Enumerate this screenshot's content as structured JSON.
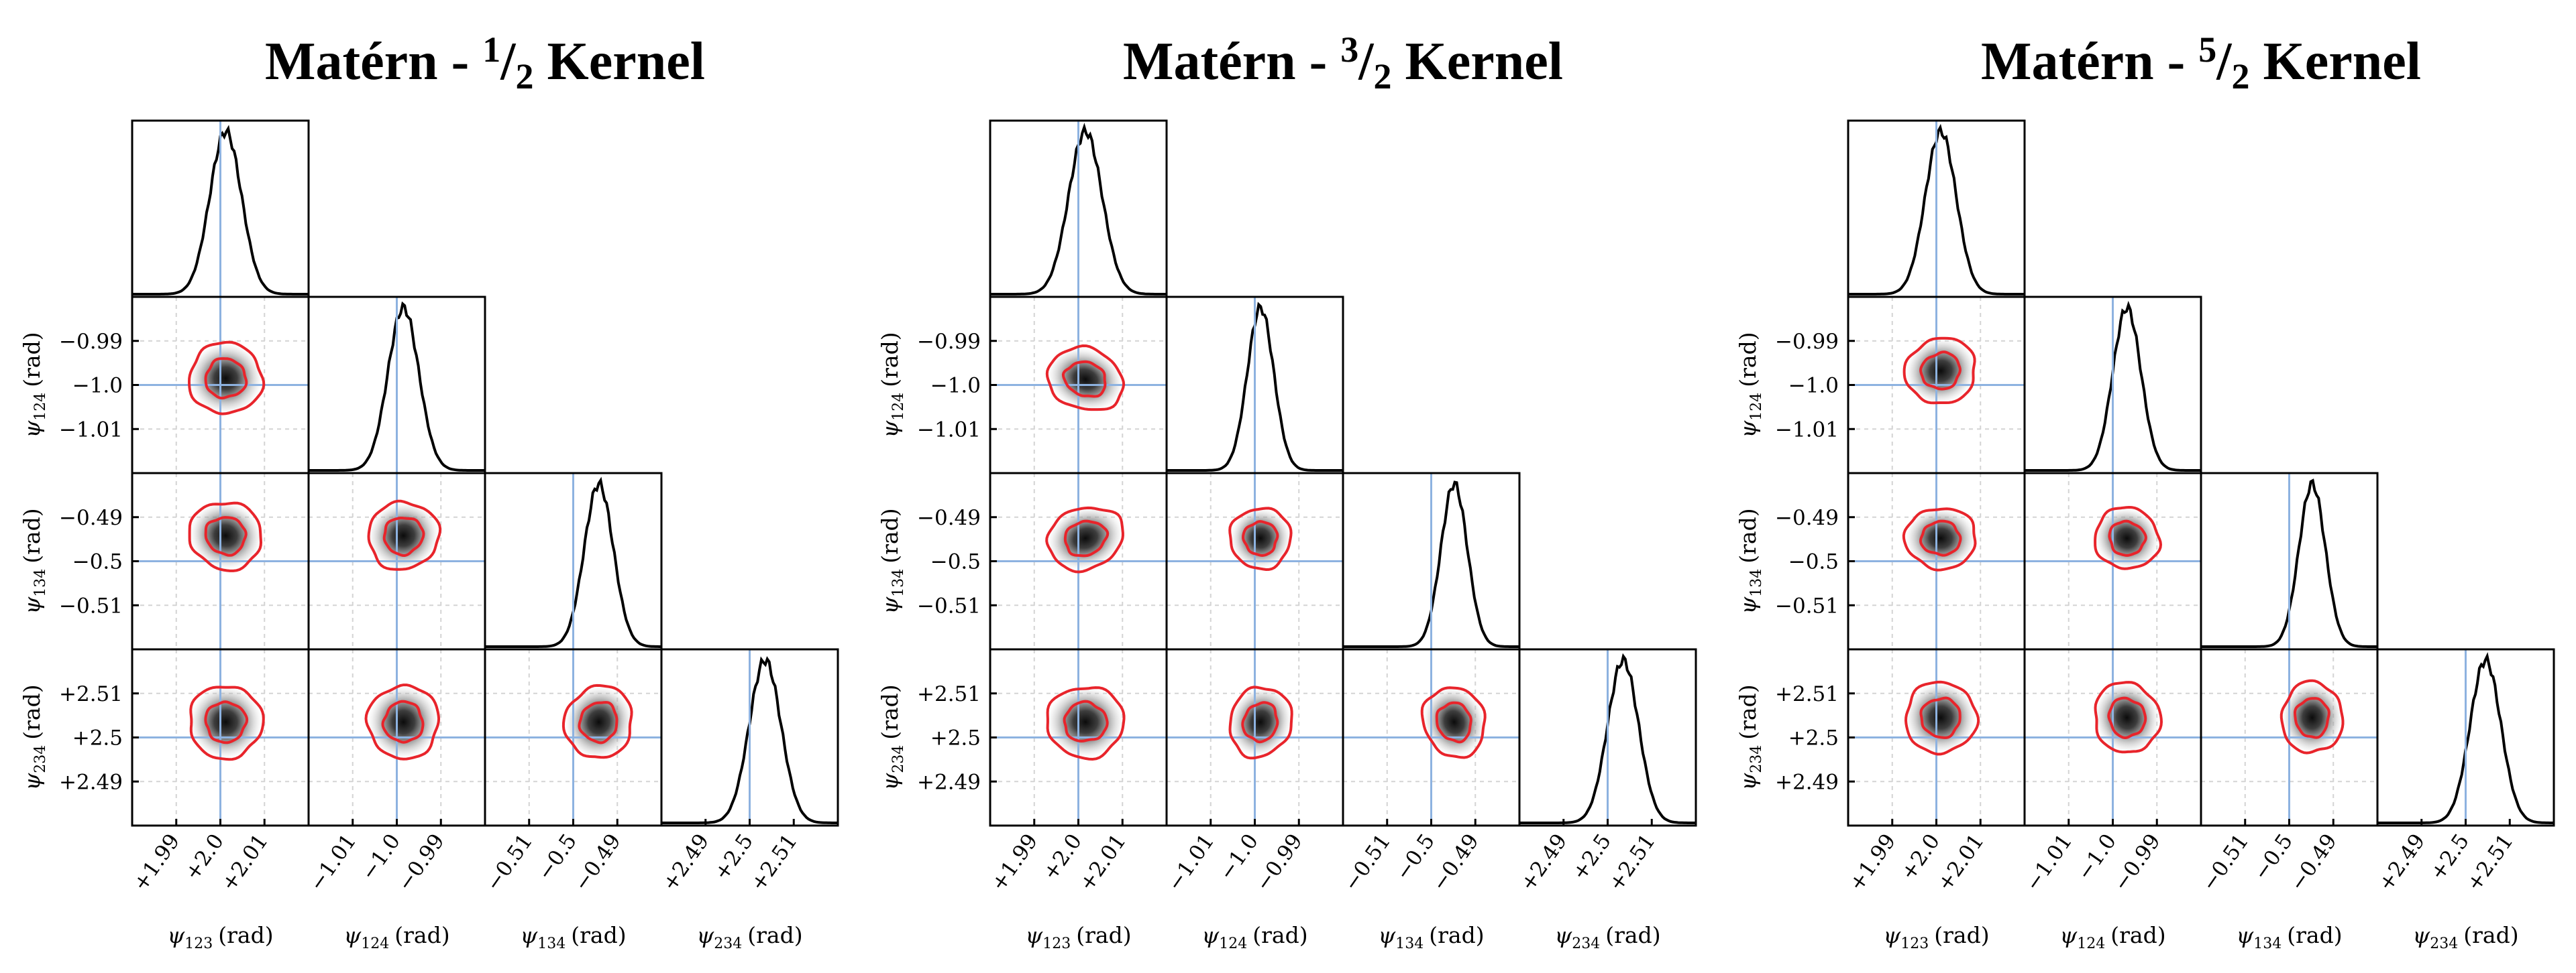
{
  "figure": {
    "titles": [
      {
        "prefix": "Matérn - ",
        "numerator": "1",
        "slash": "/",
        "denominator": "2",
        "suffix": " Kernel"
      },
      {
        "prefix": "Matérn - ",
        "numerator": "3",
        "slash": "/",
        "denominator": "2",
        "suffix": " Kernel"
      },
      {
        "prefix": "Matérn - ",
        "numerator": "5",
        "slash": "/",
        "denominator": "2",
        "suffix": " Kernel"
      }
    ],
    "unit": "(rad)",
    "params": [
      {
        "symbol": "ψ",
        "sub": "123",
        "ticks": [
          "+1.99",
          "+2.0",
          "+2.01"
        ]
      },
      {
        "symbol": "ψ",
        "sub": "124",
        "ticks": [
          "−1.01",
          "−1.0",
          "−0.99"
        ]
      },
      {
        "symbol": "ψ",
        "sub": "134",
        "ticks": [
          "−0.51",
          "−0.5",
          "−0.49"
        ]
      },
      {
        "symbol": "ψ",
        "sub": "234",
        "ticks": [
          "+2.49",
          "+2.5",
          "+2.51"
        ]
      }
    ],
    "colors": {
      "contour": "#e8242b",
      "truth_line": "#8db2e0",
      "hist": "#000000",
      "frame": "#000000",
      "grid": "#d4d4d4"
    }
  },
  "chart_data": {
    "type": "corner",
    "parameters": [
      "ψ123",
      "ψ124",
      "ψ134",
      "ψ234"
    ],
    "truth_values": [
      2.0,
      -1.0,
      -0.5,
      2.5
    ],
    "axis_ranges": [
      [
        1.98,
        2.02
      ],
      [
        -1.02,
        -0.98
      ],
      [
        -0.52,
        -0.48
      ],
      [
        2.48,
        2.52
      ]
    ],
    "ticks": [
      [
        1.99,
        2.0,
        2.01
      ],
      [
        -1.01,
        -1.0,
        -0.99
      ],
      [
        -0.51,
        -0.5,
        -0.49
      ],
      [
        2.49,
        2.5,
        2.51
      ]
    ],
    "panels": [
      {
        "kernel": "Matérn - 1/2",
        "posterior_mean": [
          2.0012,
          -0.9985,
          -0.4942,
          2.5035
        ],
        "posterior_sd": [
          0.0036,
          0.0035,
          0.0033,
          0.0036
        ]
      },
      {
        "kernel": "Matérn - 3/2",
        "posterior_mean": [
          2.0016,
          -0.9987,
          -0.4948,
          2.5035
        ],
        "posterior_sd": [
          0.0038,
          0.003,
          0.003,
          0.0035
        ]
      },
      {
        "kernel": "Matérn - 5/2",
        "posterior_mean": [
          2.001,
          -0.9968,
          -0.4948,
          2.5045
        ],
        "posterior_sd": [
          0.0035,
          0.0032,
          0.003,
          0.0035
        ]
      }
    ]
  }
}
